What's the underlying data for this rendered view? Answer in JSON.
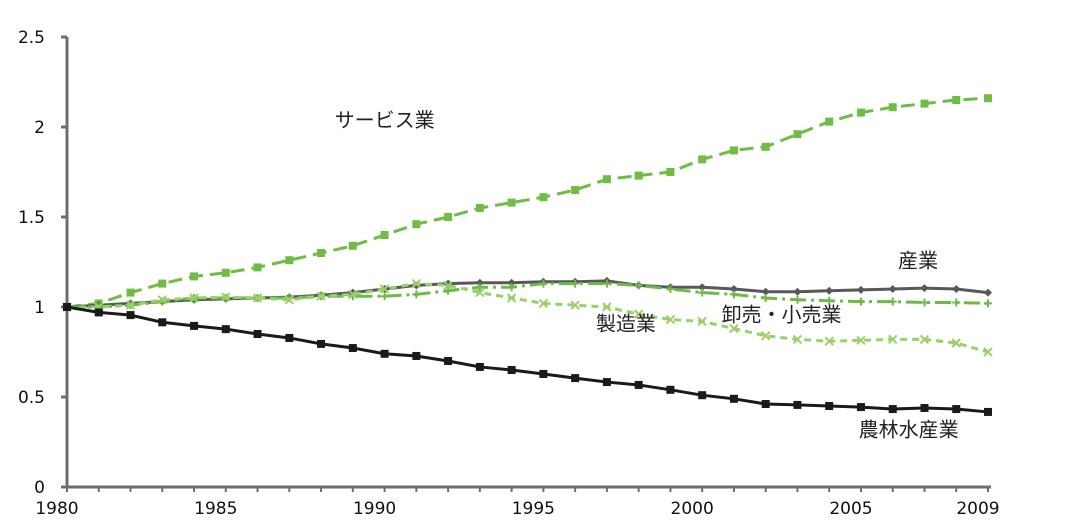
{
  "chart_data": {
    "type": "line",
    "title": "",
    "xlabel": "",
    "ylabel": "",
    "xlim": [
      1980,
      2009
    ],
    "ylim": [
      0,
      2.5
    ],
    "grid": false,
    "x_ticks": [
      "1980",
      "1985",
      "1990",
      "1995",
      "2000",
      "2005",
      "2009"
    ],
    "x_tick_values": [
      1980,
      1985,
      1990,
      1995,
      2000,
      2005,
      2009
    ],
    "y_ticks": [
      "0",
      "0.5",
      "1",
      "1.5",
      "2",
      "2.5"
    ],
    "y_tick_values": [
      0,
      0.5,
      1,
      1.5,
      2,
      2.5
    ],
    "x": [
      1980,
      1981,
      1982,
      1983,
      1984,
      1985,
      1986,
      1987,
      1988,
      1989,
      1990,
      1991,
      1992,
      1993,
      1994,
      1995,
      1996,
      1997,
      1998,
      1999,
      2000,
      2001,
      2002,
      2003,
      2004,
      2005,
      2006,
      2007,
      2008,
      2009
    ],
    "series": [
      {
        "name": "サービス業",
        "color": "#6fbd44",
        "marker": "square",
        "dash": "14,7",
        "label_year": 1990,
        "label_value": 2.0,
        "values": [
          1.0,
          1.02,
          1.08,
          1.13,
          1.17,
          1.19,
          1.22,
          1.26,
          1.3,
          1.34,
          1.4,
          1.46,
          1.5,
          1.55,
          1.58,
          1.61,
          1.65,
          1.71,
          1.73,
          1.75,
          1.82,
          1.87,
          1.89,
          1.96,
          2.03,
          2.08,
          2.11,
          2.13,
          2.15,
          2.16
        ]
      },
      {
        "name": "産業",
        "color": "#58585a",
        "marker": "diamond",
        "dash": "",
        "label_year": 2006.8,
        "label_value": 1.22,
        "values": [
          1.0,
          1.01,
          1.02,
          1.03,
          1.04,
          1.045,
          1.05,
          1.055,
          1.065,
          1.08,
          1.1,
          1.12,
          1.13,
          1.135,
          1.135,
          1.14,
          1.14,
          1.145,
          1.12,
          1.11,
          1.11,
          1.1,
          1.085,
          1.085,
          1.09,
          1.095,
          1.1,
          1.105,
          1.1,
          1.08
        ]
      },
      {
        "name": "卸売・小売業",
        "color": "#6dbb45",
        "marker": "plus",
        "dash": "16,5,3,5",
        "label_year": 2002.5,
        "label_value": 0.92,
        "values": [
          1.0,
          1.0,
          1.01,
          1.03,
          1.05,
          1.05,
          1.05,
          1.05,
          1.06,
          1.06,
          1.06,
          1.07,
          1.09,
          1.11,
          1.11,
          1.13,
          1.13,
          1.13,
          1.12,
          1.1,
          1.08,
          1.07,
          1.05,
          1.04,
          1.035,
          1.03,
          1.03,
          1.025,
          1.025,
          1.02
        ]
      },
      {
        "name": "製造業",
        "color": "#98d06a",
        "marker": "cross",
        "dash": "7,5",
        "label_year": 1997.6,
        "label_value": 0.87,
        "values": [
          1.0,
          1.0,
          1.01,
          1.04,
          1.05,
          1.055,
          1.05,
          1.04,
          1.06,
          1.07,
          1.1,
          1.13,
          1.12,
          1.08,
          1.05,
          1.02,
          1.01,
          1.0,
          0.96,
          0.93,
          0.92,
          0.88,
          0.84,
          0.82,
          0.81,
          0.815,
          0.82,
          0.82,
          0.8,
          0.75
        ]
      },
      {
        "name": "農林水産業",
        "color": "#1a1a1a",
        "marker": "square",
        "dash": "",
        "label_year": 2006.5,
        "label_value": 0.28,
        "values": [
          1.0,
          0.97,
          0.955,
          0.915,
          0.895,
          0.877,
          0.85,
          0.828,
          0.795,
          0.772,
          0.74,
          0.728,
          0.7,
          0.667,
          0.65,
          0.628,
          0.605,
          0.583,
          0.567,
          0.54,
          0.51,
          0.49,
          0.461,
          0.456,
          0.45,
          0.444,
          0.433,
          0.439,
          0.433,
          0.417
        ]
      }
    ]
  }
}
